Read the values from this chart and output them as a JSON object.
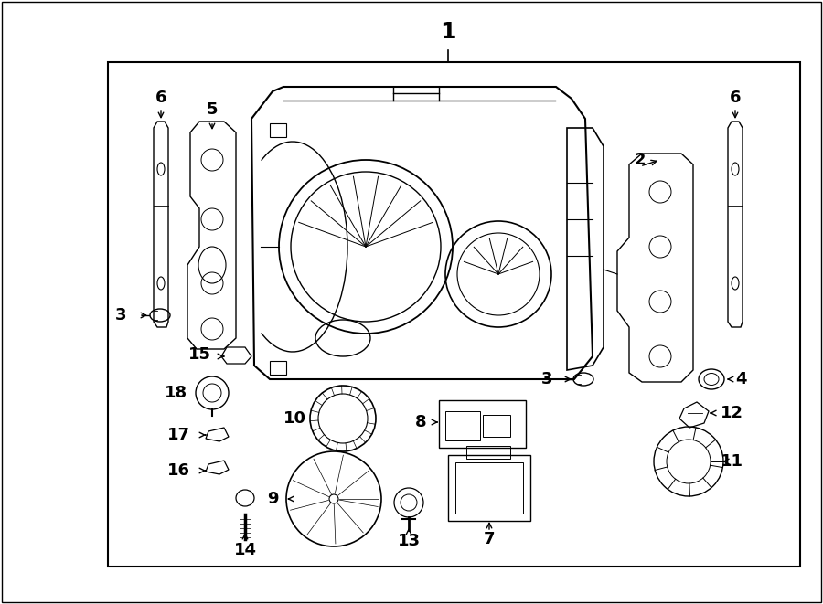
{
  "bg_color": "#ffffff",
  "line_color": "#000000",
  "text_color": "#000000",
  "fig_width": 9.0,
  "fig_height": 6.61,
  "dpi": 100,
  "xlim": [
    0,
    900
  ],
  "ylim": [
    0,
    661
  ]
}
